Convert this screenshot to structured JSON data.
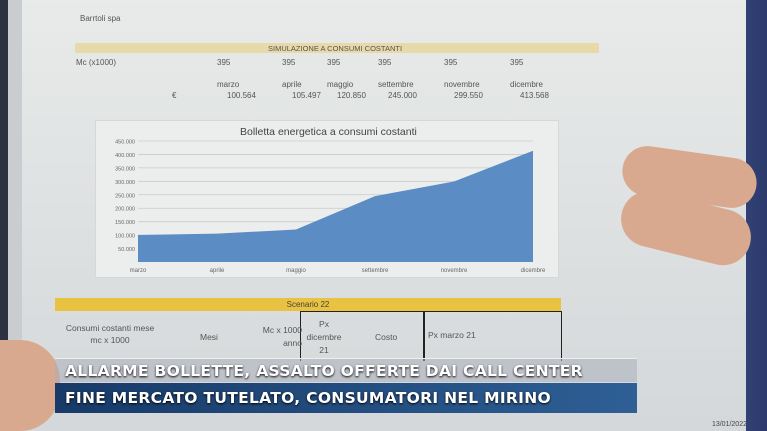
{
  "document": {
    "company": "Barrtoli spa",
    "section_title": "SIMULAZIONE A CONSUMI COSTANTI",
    "row_label_mc": "Mc (x1000)",
    "mc_values": [
      "395",
      "395",
      "395",
      "395",
      "395",
      "395"
    ],
    "months": [
      "marzo",
      "aprile",
      "maggio",
      "settembre",
      "novembre",
      "dicembre"
    ],
    "currency_label": "€",
    "euro_values": [
      "100.564",
      "105.497",
      "120.850",
      "245.000",
      "299.550",
      "413.568"
    ],
    "scenario": {
      "title": "Scenario 22",
      "headers": [
        "Consumi costanti mese mc x 1000",
        "Mesi",
        "Mc x 1000 anno",
        "Px dicembre 21",
        "Costo",
        "Px marzo 21"
      ]
    }
  },
  "chart_data": {
    "type": "area",
    "title": "Bolletta energetica a consumi costanti",
    "categories": [
      "marzo",
      "aprile",
      "maggio",
      "settembre",
      "novembre",
      "dicembre"
    ],
    "values": [
      100564,
      105497,
      120850,
      245000,
      299550,
      413568
    ],
    "yticks": [
      "50.000",
      "100.000",
      "150.000",
      "200.000",
      "250.000",
      "300.000",
      "350.000",
      "400.000",
      "450.000"
    ],
    "ylim": [
      0,
      450000
    ],
    "grid": true,
    "color": "#5b8cc4"
  },
  "ticker": {
    "line1": "ALLARME BOLLETTE, ASSALTO OFFERTE DAI CALL CENTER",
    "line2": "FINE MERCATO TUTELATO, CONSUMATORI NEL MIRINO"
  },
  "date": "13/01/2022"
}
